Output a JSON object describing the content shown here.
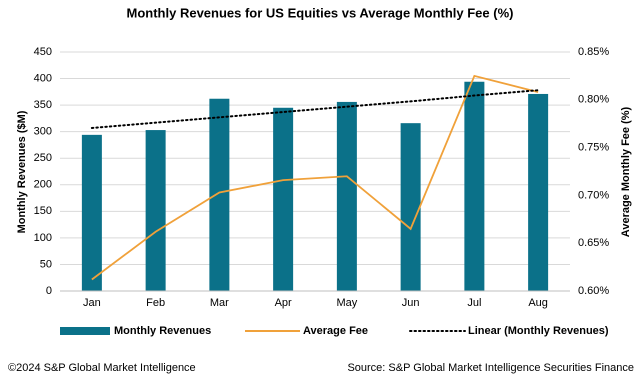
{
  "chart_data": {
    "type": "bar",
    "title": "Monthly Revenues for US Equities vs Average Monthly Fee (%)",
    "y_label": "Monthly Revenues ($M)",
    "y2_label": "Average Monthly Fee (%)",
    "categories": [
      "Jan",
      "Feb",
      "Mar",
      "Apr",
      "May",
      "Jun",
      "Jul",
      "Aug"
    ],
    "series": [
      {
        "name": "Monthly Revenues",
        "type": "bar",
        "color": "#0b7189",
        "values": [
          294,
          303,
          362,
          345,
          356,
          316,
          394,
          371
        ]
      },
      {
        "name": "Average Fee",
        "type": "line",
        "axis": "y2",
        "color": "#f0a13a",
        "values": [
          0.612,
          0.662,
          0.703,
          0.716,
          0.72,
          0.665,
          0.825,
          0.808
        ]
      },
      {
        "name": "Linear (Monthly Revenues)",
        "type": "dotted",
        "color": "#000000",
        "values": [
          307,
          317,
          327,
          337,
          347,
          357,
          368,
          378
        ]
      }
    ],
    "ylim": [
      0,
      450
    ],
    "yticks": [
      0,
      50,
      100,
      150,
      200,
      250,
      300,
      350,
      400,
      450
    ],
    "y2lim": [
      0.6,
      0.85
    ],
    "y2ticks": [
      {
        "value": 0.6,
        "label": "0.60%"
      },
      {
        "value": 0.65,
        "label": "0.65%"
      },
      {
        "value": 0.7,
        "label": "0.70%"
      },
      {
        "value": 0.75,
        "label": "0.75%"
      },
      {
        "value": 0.8,
        "label": "0.80%"
      },
      {
        "value": 0.85,
        "label": "0.85%"
      }
    ],
    "grid": true,
    "legend": "bottom",
    "footer_left": "©2024 S&P Global Market Intelligence",
    "footer_right": "Source: S&P Global Market Intelligence Securities Finance"
  }
}
